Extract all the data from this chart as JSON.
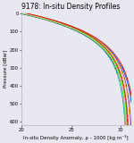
{
  "title": "9178: In-situ Density Profiles",
  "xlabel": "In-situ Density Anomaly, ρ - 1000 [kg m⁻³]",
  "ylabel": "Pressure [dBar]",
  "xlim": [
    20,
    31
  ],
  "ylim": [
    620,
    -10
  ],
  "xticks": [
    20,
    25,
    30
  ],
  "yticks": [
    0,
    100,
    200,
    300,
    400,
    500,
    600
  ],
  "num_profiles": 14,
  "title_fontsize": 5.5,
  "label_fontsize": 4.0,
  "tick_fontsize": 3.8,
  "background_color": "#e8e8f0",
  "axes_color": "#ffffff"
}
